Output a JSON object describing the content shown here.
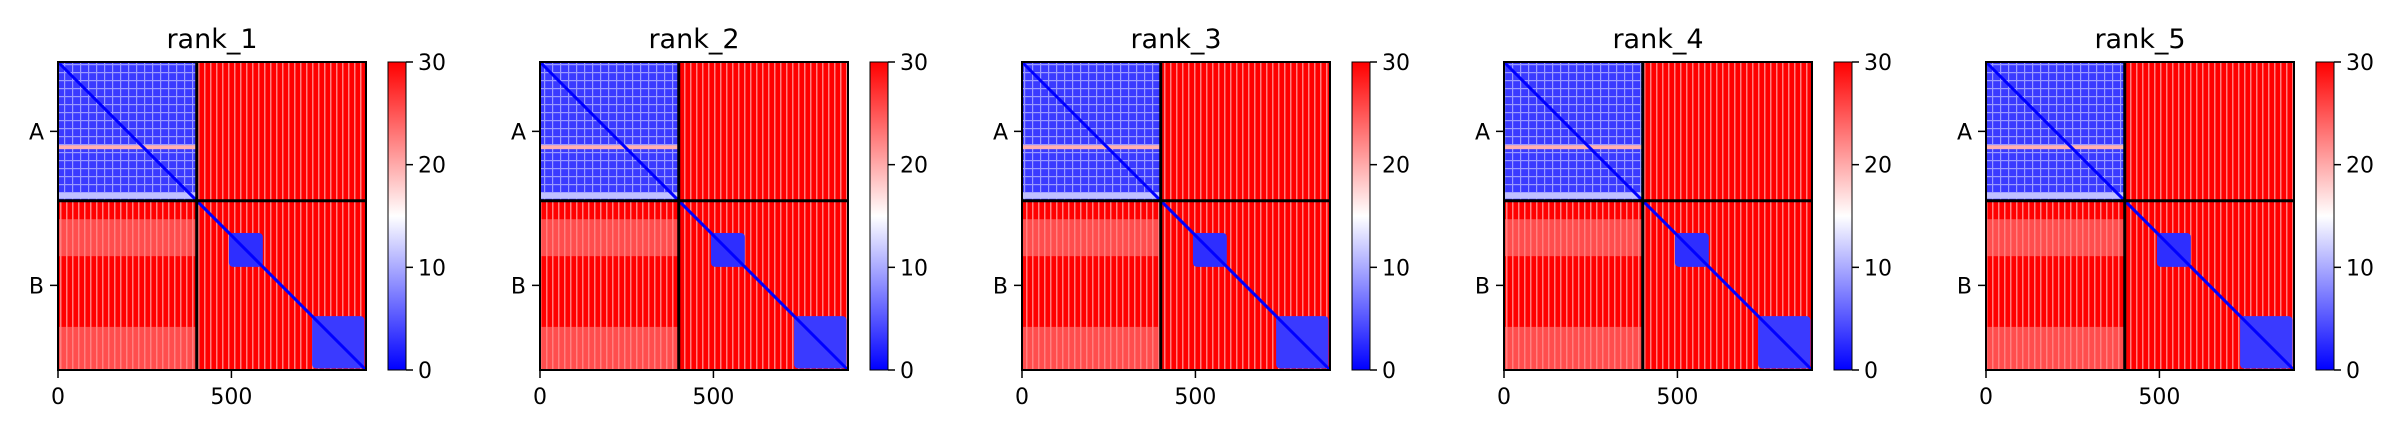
{
  "chart_data": {
    "type": "heatmap",
    "colormap": [
      "#0000ff",
      "#ffffff",
      "#ff0000"
    ],
    "colorbar": {
      "range": [
        0,
        30
      ],
      "ticks": [
        0,
        10,
        20,
        30
      ]
    },
    "x_ticks": [
      0,
      500
    ],
    "x_range": [
      0,
      888
    ],
    "y_ticks": [
      "A",
      "B"
    ],
    "chain_boundary": 400,
    "panels": [
      {
        "title": "rank_1"
      },
      {
        "title": "rank_2"
      },
      {
        "title": "rank_3"
      },
      {
        "title": "rank_4"
      },
      {
        "title": "rank_5"
      }
    ],
    "grid": false
  }
}
